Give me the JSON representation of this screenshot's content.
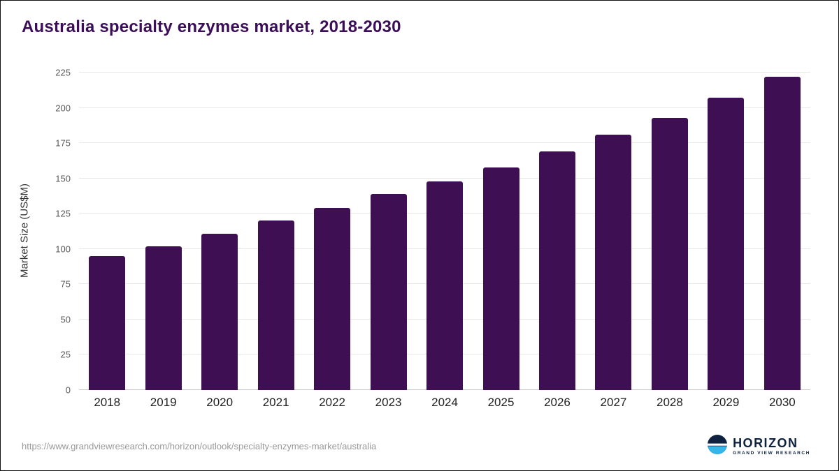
{
  "chart_data": {
    "type": "bar",
    "title": "Australia specialty enzymes market, 2018-2030",
    "ylabel": "Market Size (US$M)",
    "xlabel": "",
    "categories": [
      "2018",
      "2019",
      "2020",
      "2021",
      "2022",
      "2023",
      "2024",
      "2025",
      "2026",
      "2027",
      "2028",
      "2029",
      "2030"
    ],
    "values": [
      95,
      102,
      111,
      120,
      129,
      139,
      148,
      158,
      169,
      181,
      193,
      207,
      222
    ],
    "ylim": [
      0,
      225
    ],
    "yticks": [
      0,
      25,
      50,
      75,
      100,
      125,
      150,
      175,
      200,
      225
    ],
    "bar_color": "#3e1053",
    "grid": "horizontal",
    "legend": "none"
  },
  "footer": {
    "source_url": "https://www.grandviewresearch.com/horizon/outlook/specialty-enzymes-market/australia",
    "logo": {
      "name": "HORIZON",
      "subtitle": "GRAND VIEW RESEARCH"
    }
  }
}
